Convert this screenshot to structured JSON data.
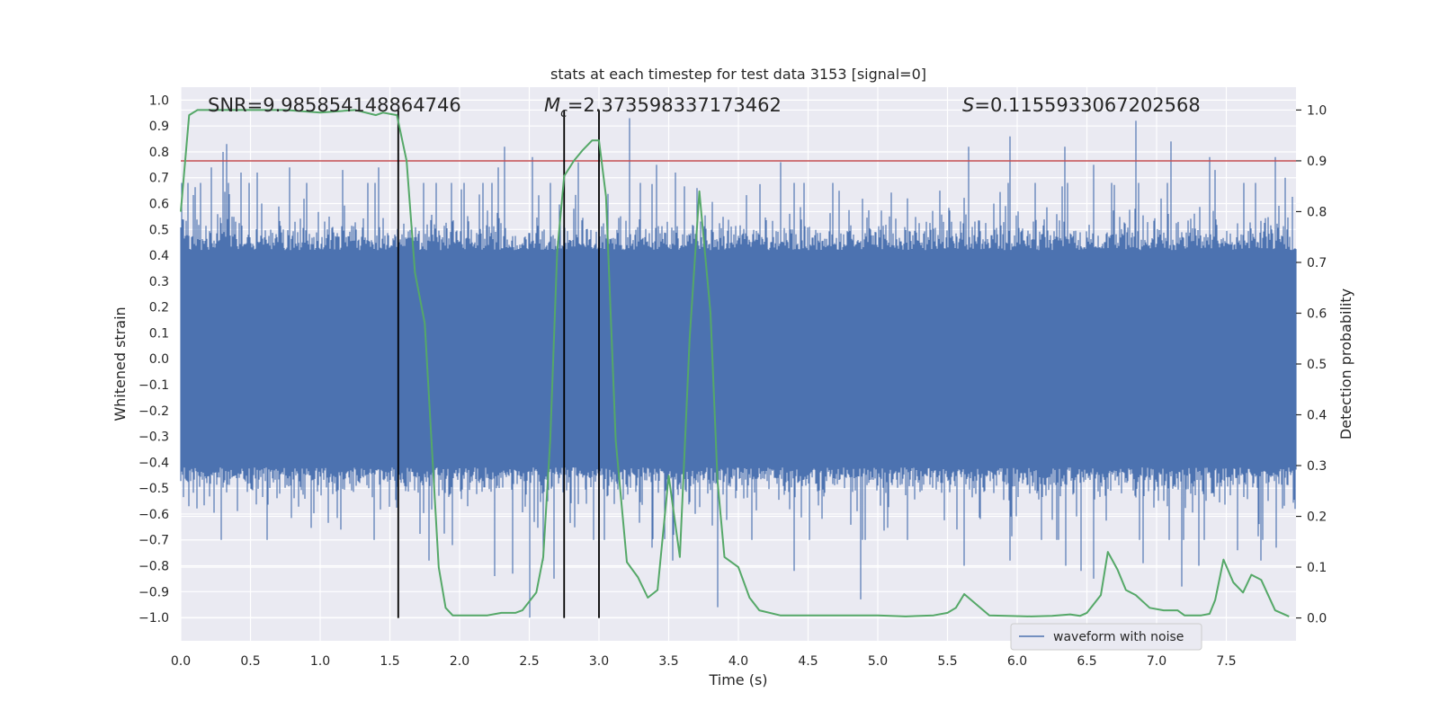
{
  "chart_data": {
    "type": "line",
    "title": "stats at each timestep for test data 3153 [signal=0]",
    "xlabel": "Time (s)",
    "ylabel_left": "Whitened strain",
    "ylabel_right": "Detection probability",
    "xlim": [
      0.0,
      8.0
    ],
    "ylim_left": [
      -1.09,
      1.05
    ],
    "ylim_right": [
      -0.045,
      1.045
    ],
    "x_ticks": [
      0.0,
      0.5,
      1.0,
      1.5,
      2.0,
      2.5,
      3.0,
      3.5,
      4.0,
      4.5,
      5.0,
      5.5,
      6.0,
      6.5,
      7.0,
      7.5
    ],
    "x_tick_labels": [
      "0.0",
      "0.5",
      "1.0",
      "1.5",
      "2.0",
      "2.5",
      "3.0",
      "3.5",
      "4.0",
      "4.5",
      "5.0",
      "5.5",
      "6.0",
      "6.5",
      "7.0",
      "7.5"
    ],
    "y_left_ticks": [
      1.0,
      0.9,
      0.8,
      0.7,
      0.6,
      0.5,
      0.4,
      0.3,
      0.2,
      0.1,
      0.0,
      -0.1,
      -0.2,
      -0.3,
      -0.4,
      -0.5,
      -0.6,
      -0.7,
      -0.8,
      -0.9,
      -1.0
    ],
    "y_left_tick_labels": [
      "1.0",
      "0.9",
      "0.8",
      "0.7",
      "0.6",
      "0.5",
      "0.4",
      "0.3",
      "0.2",
      "0.1",
      "0.0",
      "−0.1",
      "−0.2",
      "−0.3",
      "−0.4",
      "−0.5",
      "−0.6",
      "−0.7",
      "−0.8",
      "−0.9",
      "−1.0"
    ],
    "y_right_ticks": [
      1.0,
      0.9,
      0.8,
      0.7,
      0.6,
      0.5,
      0.4,
      0.3,
      0.2,
      0.1,
      0.0
    ],
    "y_right_tick_labels": [
      "1.0",
      "0.9",
      "0.8",
      "0.7",
      "0.6",
      "0.5",
      "0.4",
      "0.3",
      "0.2",
      "0.1",
      "0.0"
    ],
    "grid": true,
    "legend": {
      "placement": "lower-right",
      "entries": [
        "waveform with noise"
      ]
    },
    "annotations": {
      "snr": "SNR=9.985854148864746",
      "mc_symbol": "M",
      "mc_sub": "c",
      "mc_value": "=2.373598337173462",
      "s_symbol": "S",
      "s_value": "=0.1155933067202568"
    },
    "threshold": {
      "axis": "right",
      "value": 0.9,
      "color": "#c44e52"
    },
    "vertical_lines": [
      1.56,
      2.75,
      3.0
    ],
    "waveform": {
      "name": "waveform with noise",
      "color": "#4c72b0",
      "duration_s": 8.0,
      "core_envelope": [
        -0.42,
        0.42
      ],
      "peaks": [
        [
          0.33,
          0.83
        ],
        [
          0.3,
          0.8
        ],
        [
          0.22,
          0.74
        ],
        [
          0.43,
          0.72
        ],
        [
          0.55,
          0.72
        ],
        [
          0.78,
          0.74
        ],
        [
          1.16,
          0.73
        ],
        [
          1.42,
          0.74
        ],
        [
          2.28,
          0.74
        ],
        [
          2.32,
          0.82
        ],
        [
          2.52,
          0.78
        ],
        [
          2.85,
          0.76
        ],
        [
          3.22,
          0.93
        ],
        [
          3.41,
          0.75
        ],
        [
          3.55,
          0.72
        ],
        [
          3.7,
          0.66
        ],
        [
          4.3,
          0.76
        ],
        [
          5.65,
          0.82
        ],
        [
          5.95,
          0.86
        ],
        [
          6.34,
          0.82
        ],
        [
          6.55,
          0.75
        ],
        [
          6.85,
          0.92
        ],
        [
          7.1,
          0.84
        ],
        [
          7.38,
          0.78
        ],
        [
          7.42,
          0.73
        ],
        [
          7.85,
          0.78
        ],
        [
          7.92,
          0.7
        ]
      ],
      "troughs": [
        [
          0.29,
          -0.7
        ],
        [
          0.62,
          -0.7
        ],
        [
          1.15,
          -0.66
        ],
        [
          1.78,
          -0.78
        ],
        [
          1.95,
          -0.72
        ],
        [
          2.25,
          -0.84
        ],
        [
          2.38,
          -0.83
        ],
        [
          2.5,
          -1.0
        ],
        [
          2.6,
          -0.78
        ],
        [
          2.68,
          -0.85
        ],
        [
          3.38,
          -0.73
        ],
        [
          3.53,
          -0.78
        ],
        [
          3.85,
          -0.96
        ],
        [
          4.4,
          -0.82
        ],
        [
          4.88,
          -0.93
        ],
        [
          5.62,
          -0.8
        ],
        [
          5.95,
          -0.78
        ],
        [
          6.35,
          -0.8
        ],
        [
          6.46,
          -0.82
        ],
        [
          6.55,
          -0.85
        ],
        [
          6.9,
          -0.79
        ],
        [
          7.18,
          -0.88
        ],
        [
          7.3,
          -0.8
        ],
        [
          7.58,
          -0.74
        ],
        [
          7.75,
          -0.78
        ],
        [
          7.86,
          -0.73
        ]
      ]
    },
    "probability": {
      "color": "#55a868",
      "x": [
        0.0,
        0.06,
        0.12,
        0.25,
        0.5,
        0.75,
        1.0,
        1.25,
        1.4,
        1.45,
        1.55,
        1.62,
        1.68,
        1.75,
        1.85,
        1.9,
        1.95,
        2.0,
        2.1,
        2.2,
        2.3,
        2.4,
        2.45,
        2.55,
        2.6,
        2.65,
        2.7,
        2.75,
        2.82,
        2.88,
        2.95,
        3.0,
        3.05,
        3.12,
        3.2,
        3.28,
        3.35,
        3.42,
        3.5,
        3.58,
        3.65,
        3.72,
        3.8,
        3.85,
        3.9,
        4.0,
        4.08,
        4.15,
        4.3,
        4.5,
        4.6,
        4.8,
        5.0,
        5.2,
        5.4,
        5.5,
        5.56,
        5.62,
        5.8,
        6.1,
        6.25,
        6.38,
        6.45,
        6.5,
        6.6,
        6.65,
        6.72,
        6.78,
        6.85,
        6.95,
        7.05,
        7.15,
        7.2,
        7.32,
        7.38,
        7.42,
        7.48,
        7.55,
        7.62,
        7.68,
        7.75,
        7.85,
        7.95
      ],
      "y": [
        0.8,
        0.99,
        1.0,
        1.0,
        1.0,
        1.0,
        0.995,
        1.0,
        0.99,
        0.995,
        0.99,
        0.9,
        0.68,
        0.58,
        0.1,
        0.02,
        0.005,
        0.005,
        0.005,
        0.005,
        0.01,
        0.01,
        0.015,
        0.05,
        0.12,
        0.35,
        0.72,
        0.87,
        0.9,
        0.92,
        0.94,
        0.94,
        0.83,
        0.35,
        0.11,
        0.08,
        0.04,
        0.055,
        0.28,
        0.12,
        0.55,
        0.84,
        0.6,
        0.27,
        0.12,
        0.1,
        0.04,
        0.015,
        0.005,
        0.005,
        0.005,
        0.005,
        0.005,
        0.003,
        0.005,
        0.01,
        0.02,
        0.047,
        0.005,
        0.003,
        0.004,
        0.007,
        0.004,
        0.01,
        0.045,
        0.13,
        0.095,
        0.055,
        0.045,
        0.02,
        0.015,
        0.015,
        0.005,
        0.005,
        0.008,
        0.035,
        0.115,
        0.07,
        0.05,
        0.085,
        0.075,
        0.015,
        0.003
      ]
    }
  }
}
